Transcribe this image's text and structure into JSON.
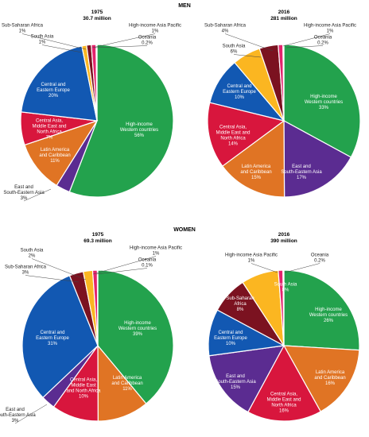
{
  "sections": {
    "men": "MEN",
    "women": "WOMEN"
  },
  "chart_data": [
    {
      "type": "pie",
      "group": "men",
      "title": "1975",
      "subtitle": "30.7 million",
      "slices": [
        {
          "label": "High-income Western countries",
          "value": 56,
          "color": "#23a24d",
          "text": "High-income\nWestern countries\n56%"
        },
        {
          "label": "East and South-Eastern Asia",
          "value": 3,
          "color": "#5b2c91",
          "text": "East and\nSouth-Eastern Asia\n3%"
        },
        {
          "label": "Latin America and Caribbean",
          "value": 11,
          "color": "#e07424",
          "text": "Latin America\nand Caribbean\n11%"
        },
        {
          "label": "Central Asia, Middle East and North Africa",
          "value": 7,
          "color": "#d8163d",
          "text": "Central Asia,\nMiddle East and\nNorth Africa\n7%"
        },
        {
          "label": "Central and Eastern Europe",
          "value": 20,
          "color": "#1258b2",
          "text": "Central and\nEastern Europe\n20%"
        },
        {
          "label": "South Asia",
          "value": 1,
          "color": "#fbb621",
          "text": "South Asia\n1%"
        },
        {
          "label": "Sub-Saharan Africa",
          "value": 1,
          "color": "#7b1220",
          "text": "Sub-Saharan Africa\n1%"
        },
        {
          "label": "High-income Asia Pacific",
          "value": 1,
          "color": "#e3236c",
          "text": "High-income Asia Pacific\n1%"
        },
        {
          "label": "Oceania",
          "value": 0.2,
          "color": "#f08ab0",
          "text": "Oceania\n0.2%"
        }
      ]
    },
    {
      "type": "pie",
      "group": "men",
      "title": "2016",
      "subtitle": "281 million",
      "slices": [
        {
          "label": "High-income Western countries",
          "value": 33,
          "color": "#23a24d",
          "text": "High-income\nWestern countries\n33%"
        },
        {
          "label": "East and South-Eastern Asia",
          "value": 17,
          "color": "#5b2c91",
          "text": "East and\nSouth-Eastern Asia\n17%"
        },
        {
          "label": "Latin America and Caribbean",
          "value": 15,
          "color": "#e07424",
          "text": "Latin America\nand Caribbean\n15%"
        },
        {
          "label": "Central Asia, Middle East and North Africa",
          "value": 14,
          "color": "#d8163d",
          "text": "Central Asia,\nMiddle East and\nNorth Africa\n14%"
        },
        {
          "label": "Central and Eastern Europe",
          "value": 10,
          "color": "#1258b2",
          "text": "Central and\nEastern Europe\n10%"
        },
        {
          "label": "South Asia",
          "value": 6,
          "color": "#fbb621",
          "text": "South Asia\n6%"
        },
        {
          "label": "Sub-Saharan Africa",
          "value": 4,
          "color": "#7b1220",
          "text": "Sub-Saharan Africa\n4%"
        },
        {
          "label": "High-income Asia Pacific",
          "value": 1,
          "color": "#e3236c",
          "text": "High-income Asia Pacific\n1%"
        },
        {
          "label": "Oceania",
          "value": 0.2,
          "color": "#f08ab0",
          "text": "Oceania\n0.2%"
        }
      ]
    },
    {
      "type": "pie",
      "group": "women",
      "title": "1975",
      "subtitle": "69.3 million",
      "slices": [
        {
          "label": "High-income Western countries",
          "value": 39,
          "color": "#23a24d",
          "text": "High-income\nWestern countries\n39%"
        },
        {
          "label": "Latin America and Caribbean",
          "value": 11,
          "color": "#e07424",
          "text": "Latin America\nand Caribbean\n11%"
        },
        {
          "label": "Central Asia, Middle East and North Africa",
          "value": 10,
          "color": "#d8163d",
          "text": "Central Asia,\nMiddle East\nand North Africa\n10%"
        },
        {
          "label": "East and South-Eastern Asia",
          "value": 3,
          "color": "#5b2c91",
          "text": "East and\nSouth-Eastern Asia\n3%"
        },
        {
          "label": "Central and Eastern Europe",
          "value": 31,
          "color": "#1258b2",
          "text": "Central and\nEastern Europe\n31%"
        },
        {
          "label": "Sub-Saharan Africa",
          "value": 3,
          "color": "#7b1220",
          "text": "Sub-Saharan Africa\n3%"
        },
        {
          "label": "South Asia",
          "value": 2,
          "color": "#fbb621",
          "text": "South Asia\n2%"
        },
        {
          "label": "High-income Asia Pacific",
          "value": 1,
          "color": "#e3236c",
          "text": "High-income Asia Pacific\n1%"
        },
        {
          "label": "Oceania",
          "value": 0.1,
          "color": "#f08ab0",
          "text": "Oceania\n0.1%"
        }
      ]
    },
    {
      "type": "pie",
      "group": "women",
      "title": "2016",
      "subtitle": "390 million",
      "slices": [
        {
          "label": "High-income Western countries",
          "value": 26,
          "color": "#23a24d",
          "text": "High-income\nWestern countries\n26%"
        },
        {
          "label": "Latin America and Caribbean",
          "value": 16,
          "color": "#e07424",
          "text": "Latin America\nand Caribbean\n16%"
        },
        {
          "label": "Central Asia, Middle East and North Africa",
          "value": 16,
          "color": "#d8163d",
          "text": "Central Asia,\nMiddle East and\nNorth Africa\n16%"
        },
        {
          "label": "East and South-Eastern Asia",
          "value": 15,
          "color": "#5b2c91",
          "text": "East and\nSouth-Eastern Asia\n15%"
        },
        {
          "label": "Central and Eastern Europe",
          "value": 10,
          "color": "#1258b2",
          "text": "Central and\nEastern Europe\n10%"
        },
        {
          "label": "Sub-Saharan Africa",
          "value": 8,
          "color": "#7b1220",
          "text": "Sub-Saharan\nAfrica\n8%"
        },
        {
          "label": "South Asia",
          "value": 8,
          "color": "#fbb621",
          "text": "South Asia\n8%"
        },
        {
          "label": "High-income Asia Pacific",
          "value": 1,
          "color": "#e3236c",
          "text": "High-income Asia Pacific\n1%"
        },
        {
          "label": "Oceania",
          "value": 0.2,
          "color": "#f08ab0",
          "text": "Oceania\n0.2%"
        }
      ]
    }
  ]
}
